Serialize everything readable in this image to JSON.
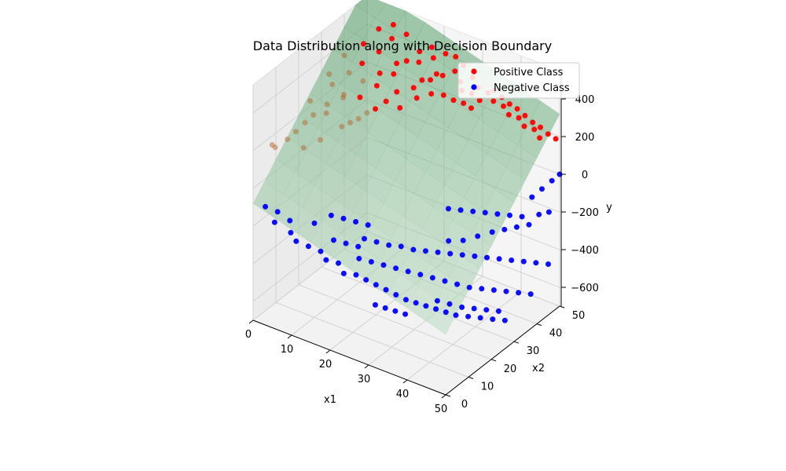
{
  "chart_data": {
    "type": "scatter",
    "title": "Data Distribution along with Decision Boundary",
    "xlabel": "x1",
    "ylabel": "x2",
    "zlabel": "y",
    "x_ticks": [
      "0",
      "10",
      "20",
      "30",
      "40",
      "50"
    ],
    "y_ticks": [
      "0",
      "10",
      "20",
      "30",
      "40",
      "50"
    ],
    "z_ticks": [
      "400",
      "200",
      "0",
      "−200",
      "−400",
      "−600"
    ],
    "xlim": [
      0,
      50
    ],
    "ylim": [
      0,
      50
    ],
    "zlim": [
      -700,
      550
    ],
    "legend_position": "top-right",
    "surface": {
      "description": "decision boundary plane",
      "color": "#7fc97f",
      "z_formula": "z = -80 - 6*x1 + 14*x2",
      "z_range": [
        -700,
        550
      ]
    },
    "series": [
      {
        "name": "Positive Class",
        "color": "#ff0000",
        "points": [
          {
            "x1": 2,
            "x2": 5,
            "y": 200
          },
          {
            "x1": 1,
            "x2": 8,
            "y": 150
          },
          {
            "x1": 4,
            "x2": 12,
            "y": 220
          },
          {
            "x1": 5,
            "x2": 18,
            "y": 260
          },
          {
            "x1": 6,
            "x2": 22,
            "y": 240
          },
          {
            "x1": 8,
            "x2": 26,
            "y": 300
          },
          {
            "x1": 10,
            "x2": 30,
            "y": 280
          },
          {
            "x1": 12,
            "x2": 34,
            "y": 320
          },
          {
            "x1": 14,
            "x2": 38,
            "y": 360
          },
          {
            "x1": 15,
            "x2": 42,
            "y": 400
          },
          {
            "x1": 16,
            "x2": 46,
            "y": 420
          },
          {
            "x1": 18,
            "x2": 48,
            "y": 440
          },
          {
            "x1": 3,
            "x2": 20,
            "y": 300
          },
          {
            "x1": 4,
            "x2": 28,
            "y": 320
          },
          {
            "x1": 6,
            "x2": 32,
            "y": 360
          },
          {
            "x1": 7,
            "x2": 36,
            "y": 380
          },
          {
            "x1": 9,
            "x2": 40,
            "y": 420
          },
          {
            "x1": 10,
            "x2": 44,
            "y": 460
          },
          {
            "x1": 12,
            "x2": 47,
            "y": 470
          },
          {
            "x1": 2,
            "x2": 30,
            "y": 340
          },
          {
            "x1": 3,
            "x2": 35,
            "y": 400
          },
          {
            "x1": 5,
            "x2": 40,
            "y": 430
          },
          {
            "x1": 6,
            "x2": 45,
            "y": 470
          },
          {
            "x1": 8,
            "x2": 48,
            "y": 480
          },
          {
            "x1": 20,
            "x2": 44,
            "y": 320
          },
          {
            "x1": 22,
            "x2": 46,
            "y": 340
          },
          {
            "x1": 24,
            "x2": 48,
            "y": 360
          },
          {
            "x1": 26,
            "x2": 47,
            "y": 330
          },
          {
            "x1": 28,
            "x2": 49,
            "y": 350
          },
          {
            "x1": 30,
            "x2": 48,
            "y": 320
          },
          {
            "x1": 32,
            "x2": 49,
            "y": 300
          },
          {
            "x1": 34,
            "x2": 48,
            "y": 280
          },
          {
            "x1": 36,
            "x2": 49,
            "y": 260
          },
          {
            "x1": 38,
            "x2": 48,
            "y": 240
          },
          {
            "x1": 40,
            "x2": 49,
            "y": 230
          },
          {
            "x1": 42,
            "x2": 48,
            "y": 210
          },
          {
            "x1": 44,
            "x2": 49,
            "y": 200
          },
          {
            "x1": 46,
            "x2": 48,
            "y": 180
          },
          {
            "x1": 18,
            "x2": 40,
            "y": 300
          },
          {
            "x1": 20,
            "x2": 38,
            "y": 280
          },
          {
            "x1": 22,
            "x2": 41,
            "y": 290
          },
          {
            "x1": 16,
            "x2": 36,
            "y": 300
          },
          {
            "x1": 14,
            "x2": 30,
            "y": 250
          },
          {
            "x1": 12,
            "x2": 26,
            "y": 220
          },
          {
            "x1": 10,
            "x2": 22,
            "y": 200
          },
          {
            "x1": 8,
            "x2": 16,
            "y": 170
          },
          {
            "x1": 6,
            "x2": 12,
            "y": 150
          },
          {
            "x1": 24,
            "x2": 43,
            "y": 280
          },
          {
            "x1": 26,
            "x2": 44,
            "y": 260
          },
          {
            "x1": 28,
            "x2": 45,
            "y": 250
          },
          {
            "x1": 30,
            "x2": 45,
            "y": 240
          },
          {
            "x1": 17,
            "x2": 44,
            "y": 390
          },
          {
            "x1": 19,
            "x2": 47,
            "y": 400
          },
          {
            "x1": 13,
            "x2": 41,
            "y": 380
          },
          {
            "x1": 11,
            "x2": 37,
            "y": 350
          },
          {
            "x1": 9,
            "x2": 33,
            "y": 330
          },
          {
            "x1": 7,
            "x2": 28,
            "y": 290
          },
          {
            "x1": 5,
            "x2": 24,
            "y": 260
          },
          {
            "x1": 4,
            "x2": 16,
            "y": 230
          },
          {
            "x1": 3,
            "x2": 10,
            "y": 190
          },
          {
            "x1": 21,
            "x2": 49,
            "y": 420
          },
          {
            "x1": 23,
            "x2": 50,
            "y": 410
          },
          {
            "x1": 25,
            "x2": 50,
            "y": 380
          },
          {
            "x1": 15,
            "x2": 33,
            "y": 270
          },
          {
            "x1": 13,
            "x2": 28,
            "y": 240
          },
          {
            "x1": 11,
            "x2": 24,
            "y": 210
          },
          {
            "x1": 19,
            "x2": 42,
            "y": 330
          },
          {
            "x1": 21,
            "x2": 45,
            "y": 350
          },
          {
            "x1": 33,
            "x2": 50,
            "y": 310
          },
          {
            "x1": 35,
            "x2": 50,
            "y": 290
          },
          {
            "x1": 37,
            "x2": 50,
            "y": 270
          },
          {
            "x1": 39,
            "x2": 50,
            "y": 260
          },
          {
            "x1": 41,
            "x2": 50,
            "y": 240
          },
          {
            "x1": 43,
            "x2": 50,
            "y": 220
          },
          {
            "x1": 45,
            "x2": 50,
            "y": 210
          },
          {
            "x1": 47,
            "x2": 50,
            "y": 190
          },
          {
            "x1": 49,
            "x2": 50,
            "y": 180
          },
          {
            "x1": 27,
            "x2": 46,
            "y": 300
          },
          {
            "x1": 29,
            "x2": 47,
            "y": 290
          },
          {
            "x1": 31,
            "x2": 47,
            "y": 270
          },
          {
            "x1": 18,
            "x2": 34,
            "y": 250
          }
        ]
      },
      {
        "name": "Negative Class",
        "color": "#0000ff",
        "points": [
          {
            "x1": 2,
            "x2": 2,
            "y": -100
          },
          {
            "x1": 5,
            "x2": 1,
            "y": -150
          },
          {
            "x1": 8,
            "x2": 3,
            "y": -200
          },
          {
            "x1": 10,
            "x2": 2,
            "y": -220
          },
          {
            "x1": 12,
            "x2": 4,
            "y": -250
          },
          {
            "x1": 14,
            "x2": 6,
            "y": -280
          },
          {
            "x1": 16,
            "x2": 5,
            "y": -300
          },
          {
            "x1": 18,
            "x2": 7,
            "y": -320
          },
          {
            "x1": 20,
            "x2": 6,
            "y": -350
          },
          {
            "x1": 22,
            "x2": 8,
            "y": -360
          },
          {
            "x1": 24,
            "x2": 9,
            "y": -380
          },
          {
            "x1": 26,
            "x2": 10,
            "y": -400
          },
          {
            "x1": 28,
            "x2": 11,
            "y": -420
          },
          {
            "x1": 30,
            "x2": 12,
            "y": -440
          },
          {
            "x1": 32,
            "x2": 13,
            "y": -460
          },
          {
            "x1": 34,
            "x2": 14,
            "y": -470
          },
          {
            "x1": 36,
            "x2": 15,
            "y": -480
          },
          {
            "x1": 38,
            "x2": 16,
            "y": -490
          },
          {
            "x1": 40,
            "x2": 17,
            "y": -500
          },
          {
            "x1": 42,
            "x2": 18,
            "y": -510
          },
          {
            "x1": 44,
            "x2": 20,
            "y": -520
          },
          {
            "x1": 46,
            "x2": 22,
            "y": -530
          },
          {
            "x1": 48,
            "x2": 24,
            "y": -540
          },
          {
            "x1": 50,
            "x2": 26,
            "y": -550
          },
          {
            "x1": 20,
            "x2": 15,
            "y": -250
          },
          {
            "x1": 22,
            "x2": 17,
            "y": -270
          },
          {
            "x1": 24,
            "x2": 19,
            "y": -290
          },
          {
            "x1": 26,
            "x2": 21,
            "y": -300
          },
          {
            "x1": 28,
            "x2": 23,
            "y": -320
          },
          {
            "x1": 30,
            "x2": 25,
            "y": -330
          },
          {
            "x1": 32,
            "x2": 27,
            "y": -340
          },
          {
            "x1": 34,
            "x2": 29,
            "y": -350
          },
          {
            "x1": 36,
            "x2": 31,
            "y": -360
          },
          {
            "x1": 38,
            "x2": 33,
            "y": -370
          },
          {
            "x1": 40,
            "x2": 35,
            "y": -380
          },
          {
            "x1": 42,
            "x2": 37,
            "y": -390
          },
          {
            "x1": 44,
            "x2": 39,
            "y": -400
          },
          {
            "x1": 46,
            "x2": 41,
            "y": -410
          },
          {
            "x1": 48,
            "x2": 43,
            "y": -420
          },
          {
            "x1": 50,
            "x2": 45,
            "y": -430
          },
          {
            "x1": 30,
            "x2": 35,
            "y": -200
          },
          {
            "x1": 32,
            "x2": 37,
            "y": -210
          },
          {
            "x1": 34,
            "x2": 39,
            "y": -220
          },
          {
            "x1": 36,
            "x2": 41,
            "y": -230
          },
          {
            "x1": 38,
            "x2": 43,
            "y": -240
          },
          {
            "x1": 40,
            "x2": 45,
            "y": -250
          },
          {
            "x1": 42,
            "x2": 47,
            "y": -260
          },
          {
            "x1": 44,
            "x2": 48,
            "y": -150
          },
          {
            "x1": 46,
            "x2": 49,
            "y": -100
          },
          {
            "x1": 48,
            "x2": 50,
            "y": -50
          },
          {
            "x1": 50,
            "x2": 50,
            "y": 0
          },
          {
            "x1": 15,
            "x2": 10,
            "y": -250
          },
          {
            "x1": 17,
            "x2": 12,
            "y": -270
          },
          {
            "x1": 19,
            "x2": 14,
            "y": -290
          },
          {
            "x1": 21,
            "x2": 11,
            "y": -310
          },
          {
            "x1": 23,
            "x2": 13,
            "y": -330
          },
          {
            "x1": 25,
            "x2": 15,
            "y": -350
          },
          {
            "x1": 27,
            "x2": 17,
            "y": -370
          },
          {
            "x1": 29,
            "x2": 19,
            "y": -390
          },
          {
            "x1": 31,
            "x2": 21,
            "y": -410
          },
          {
            "x1": 33,
            "x2": 23,
            "y": -430
          },
          {
            "x1": 35,
            "x2": 25,
            "y": -450
          },
          {
            "x1": 37,
            "x2": 27,
            "y": -470
          },
          {
            "x1": 39,
            "x2": 29,
            "y": -490
          },
          {
            "x1": 41,
            "x2": 31,
            "y": -500
          },
          {
            "x1": 43,
            "x2": 33,
            "y": -510
          },
          {
            "x1": 45,
            "x2": 35,
            "y": -520
          },
          {
            "x1": 47,
            "x2": 37,
            "y": -530
          },
          {
            "x1": 49,
            "x2": 39,
            "y": -540
          },
          {
            "x1": 12,
            "x2": 14,
            "y": -180
          },
          {
            "x1": 14,
            "x2": 16,
            "y": -200
          },
          {
            "x1": 16,
            "x2": 18,
            "y": -220
          },
          {
            "x1": 18,
            "x2": 20,
            "y": -240
          },
          {
            "x1": 10,
            "x2": 10,
            "y": -200
          },
          {
            "x1": 6,
            "x2": 6,
            "y": -180
          },
          {
            "x1": 4,
            "x2": 4,
            "y": -130
          },
          {
            "x1": 36,
            "x2": 20,
            "y": -500
          },
          {
            "x1": 38,
            "x2": 22,
            "y": -520
          },
          {
            "x1": 40,
            "x2": 24,
            "y": -540
          },
          {
            "x1": 42,
            "x2": 26,
            "y": -550
          },
          {
            "x1": 44,
            "x2": 28,
            "y": -560
          },
          {
            "x1": 46,
            "x2": 30,
            "y": -570
          },
          {
            "x1": 33,
            "x2": 30,
            "y": -300
          },
          {
            "x1": 35,
            "x2": 33,
            "y": -310
          },
          {
            "x1": 37,
            "x2": 36,
            "y": -300
          },
          {
            "x1": 39,
            "x2": 39,
            "y": -290
          },
          {
            "x1": 41,
            "x2": 41,
            "y": -280
          },
          {
            "x1": 43,
            "x2": 43,
            "y": -270
          },
          {
            "x1": 45,
            "x2": 45,
            "y": -260
          },
          {
            "x1": 47,
            "x2": 46,
            "y": -200
          },
          {
            "x1": 49,
            "x2": 47,
            "y": -180
          },
          {
            "x1": 27,
            "x2": 8,
            "y": -480
          },
          {
            "x1": 29,
            "x2": 9,
            "y": -490
          },
          {
            "x1": 31,
            "x2": 10,
            "y": -500
          },
          {
            "x1": 33,
            "x2": 11,
            "y": -510
          }
        ]
      }
    ]
  }
}
